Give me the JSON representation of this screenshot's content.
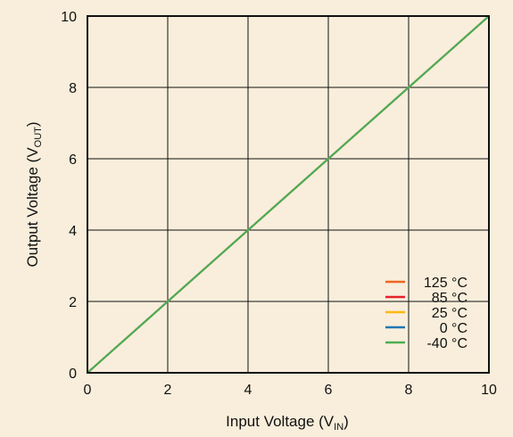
{
  "chart_data": {
    "type": "line",
    "xlabel": "Input Voltage (V",
    "xlabel_sub": "IN",
    "xlabel_end": ")",
    "ylabel": "Output Voltage (V",
    "ylabel_sub": "OUT",
    "ylabel_end": ")",
    "xlim": [
      0,
      10
    ],
    "ylim": [
      0,
      10
    ],
    "xticks": [
      0,
      2,
      4,
      6,
      8,
      10
    ],
    "yticks": [
      0,
      2,
      4,
      6,
      8,
      10
    ],
    "grid": true,
    "legend_position": "bottom-right",
    "background_color": "#f8eedb",
    "series": [
      {
        "name": "125 °C",
        "color": "#f26522",
        "x": [
          0,
          2,
          4,
          6,
          8,
          10
        ],
        "y": [
          0,
          2,
          4,
          6,
          8,
          10
        ]
      },
      {
        "name": "85 °C",
        "color": "#e8202a",
        "x": [
          0,
          2,
          4,
          6,
          8,
          10
        ],
        "y": [
          0,
          2,
          4,
          6,
          8,
          10
        ]
      },
      {
        "name": "25 °C",
        "color": "#fdb813",
        "x": [
          0,
          2,
          4,
          6,
          8,
          10
        ],
        "y": [
          0,
          2,
          4,
          6,
          8,
          10
        ]
      },
      {
        "name": "0 °C",
        "color": "#1f77b4",
        "x": [
          0,
          2,
          4,
          6,
          8,
          10
        ],
        "y": [
          0,
          2,
          4,
          6,
          8,
          10
        ]
      },
      {
        "name": "-40 °C",
        "color": "#4caf50",
        "x": [
          0,
          2,
          4,
          6,
          8,
          10
        ],
        "y": [
          0,
          2,
          4,
          6,
          8,
          10
        ]
      }
    ]
  }
}
